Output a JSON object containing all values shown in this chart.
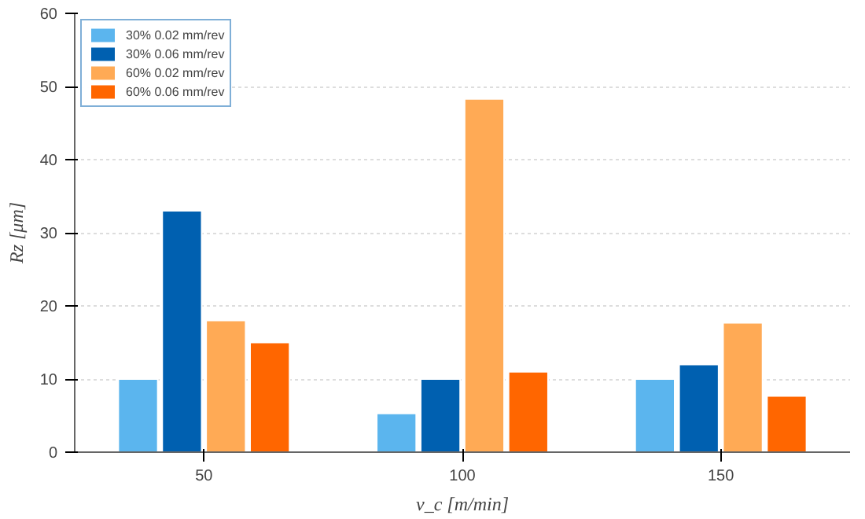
{
  "chart_data": {
    "type": "bar",
    "xlabel": "v_c [m/min]",
    "ylabel": "Rz [μm]",
    "categories": [
      "50",
      "100",
      "150"
    ],
    "series": [
      {
        "name": "30% 0.02 mm/rev",
        "color": "#5bb5ee",
        "values": [
          10,
          5.3,
          10
        ]
      },
      {
        "name": "30% 0.06 mm/rev",
        "color": "#0060b0",
        "values": [
          33,
          10,
          12
        ]
      },
      {
        "name": "60% 0.02 mm/rev",
        "color": "#ffaa55",
        "values": [
          18,
          48.3,
          17.7
        ]
      },
      {
        "name": "60% 0.06 mm/rev",
        "color": "#ff6600",
        "values": [
          15,
          11,
          7.7
        ]
      }
    ],
    "ylim": [
      0,
      60
    ],
    "yticks": [
      0,
      10,
      20,
      30,
      40,
      50,
      60
    ],
    "grid": "y",
    "legend": "top left"
  }
}
